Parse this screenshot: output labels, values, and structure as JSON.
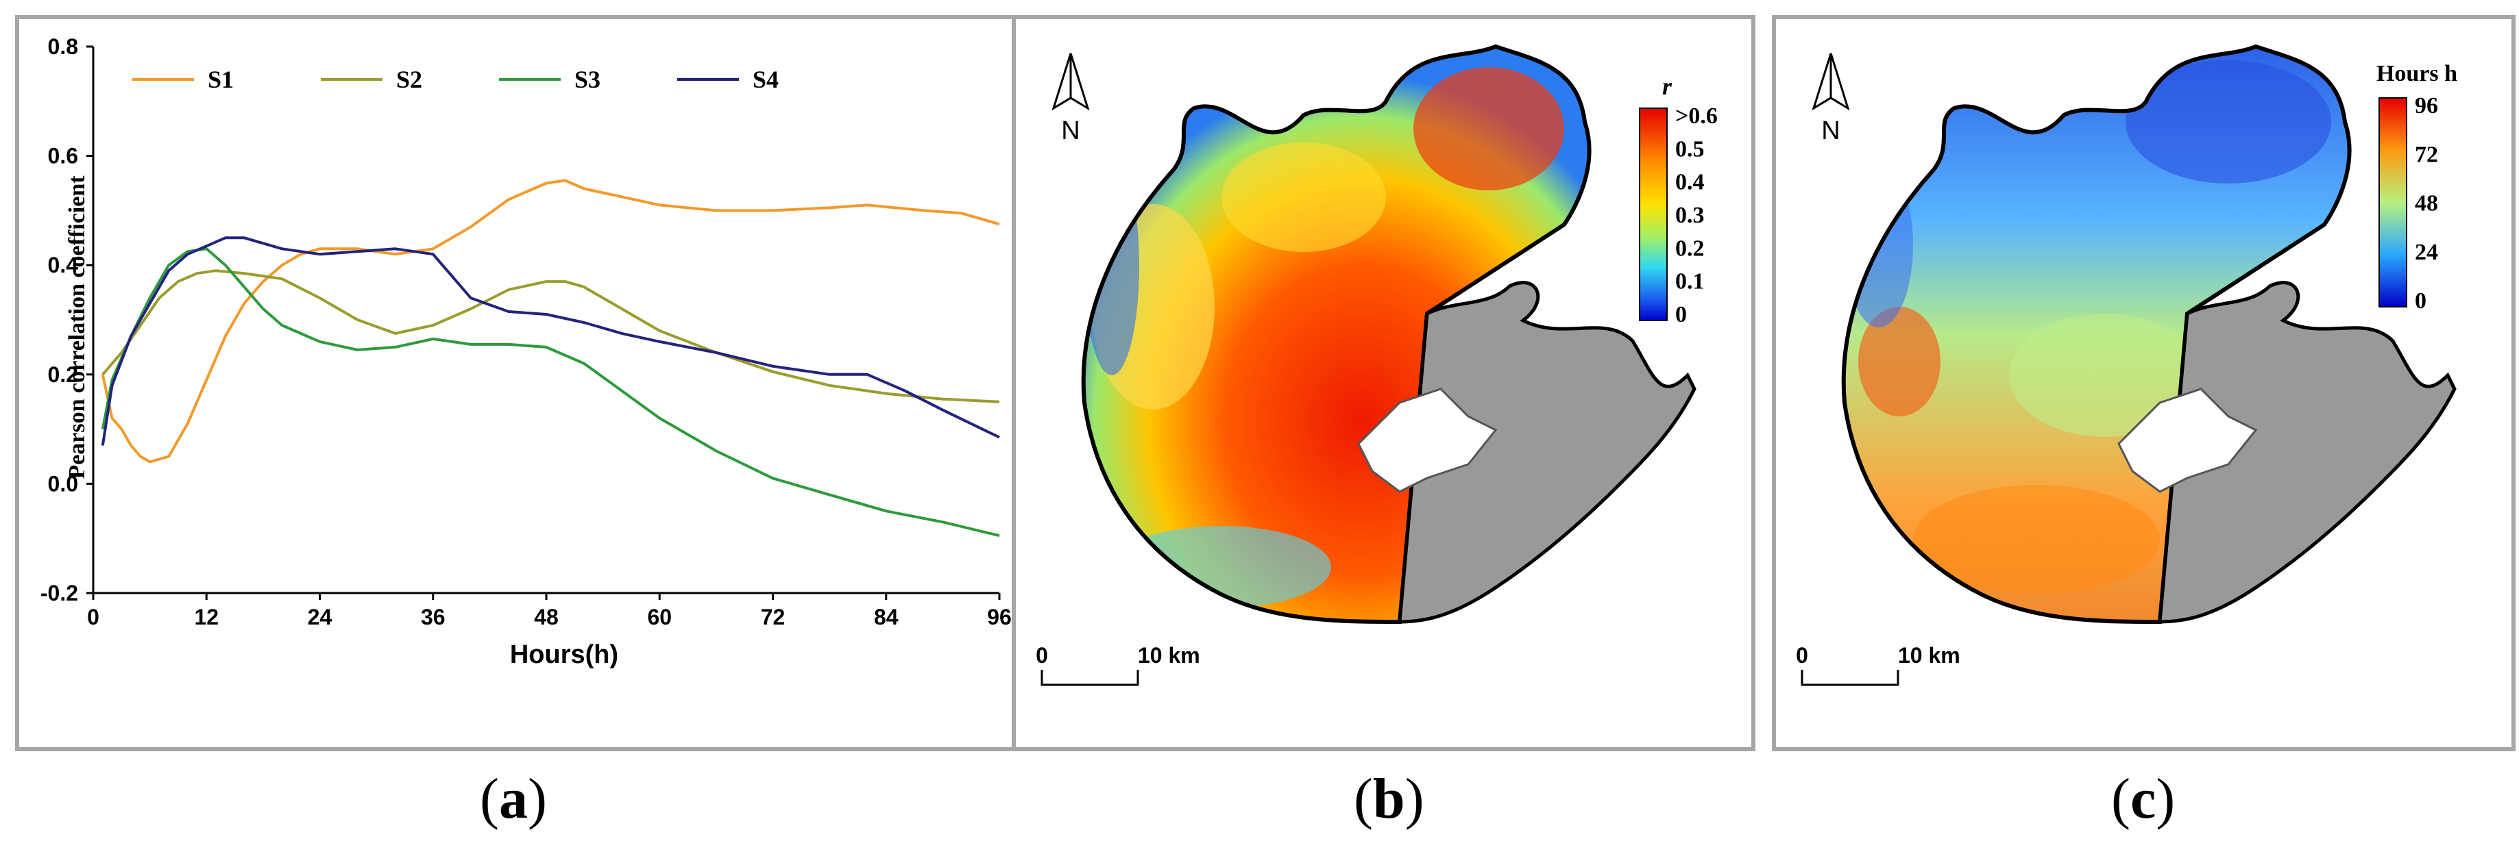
{
  "chart_data": [
    {
      "type": "line",
      "panel": "a",
      "title": "",
      "xlabel": "Hours(h)",
      "ylabel": "Pearson correlation coefficient",
      "xlim": [
        0,
        96
      ],
      "ylim": [
        -0.2,
        0.8
      ],
      "xticks": [
        "0",
        "12",
        "24",
        "36",
        "48",
        "60",
        "72",
        "84",
        "96"
      ],
      "yticks": [
        "-0.2",
        "0.0",
        "0.2",
        "0.4",
        "0.6",
        "0.8"
      ],
      "legend": "top",
      "series": [
        {
          "name": "S1",
          "color": "#f39a2b",
          "x": [
            1,
            2,
            3,
            4,
            5,
            6,
            8,
            10,
            12,
            14,
            16,
            18,
            20,
            22,
            24,
            28,
            32,
            36,
            40,
            44,
            48,
            50,
            52,
            56,
            60,
            66,
            72,
            78,
            82,
            88,
            92,
            96
          ],
          "y": [
            0.2,
            0.12,
            0.1,
            0.07,
            0.05,
            0.04,
            0.05,
            0.11,
            0.19,
            0.27,
            0.33,
            0.37,
            0.4,
            0.42,
            0.43,
            0.43,
            0.42,
            0.43,
            0.47,
            0.52,
            0.55,
            0.555,
            0.54,
            0.525,
            0.51,
            0.5,
            0.5,
            0.505,
            0.51,
            0.5,
            0.495,
            0.475
          ]
        },
        {
          "name": "S2",
          "color": "#9b9c2c",
          "x": [
            1,
            3,
            5,
            7,
            9,
            11,
            13,
            16,
            20,
            24,
            28,
            32,
            36,
            40,
            44,
            48,
            50,
            52,
            56,
            60,
            66,
            72,
            78,
            84,
            90,
            96
          ],
          "y": [
            0.2,
            0.24,
            0.29,
            0.34,
            0.37,
            0.385,
            0.39,
            0.385,
            0.375,
            0.34,
            0.3,
            0.275,
            0.29,
            0.32,
            0.355,
            0.37,
            0.37,
            0.36,
            0.32,
            0.28,
            0.24,
            0.205,
            0.18,
            0.165,
            0.155,
            0.15
          ]
        },
        {
          "name": "S3",
          "color": "#2e9a3c",
          "x": [
            1,
            2,
            4,
            6,
            8,
            10,
            12,
            14,
            16,
            18,
            20,
            24,
            28,
            32,
            36,
            40,
            44,
            48,
            52,
            56,
            60,
            66,
            72,
            78,
            84,
            90,
            96
          ],
          "y": [
            0.1,
            0.19,
            0.27,
            0.34,
            0.4,
            0.425,
            0.43,
            0.4,
            0.36,
            0.32,
            0.29,
            0.26,
            0.245,
            0.25,
            0.265,
            0.255,
            0.255,
            0.25,
            0.22,
            0.17,
            0.12,
            0.06,
            0.01,
            -0.02,
            -0.05,
            -0.07,
            -0.095
          ]
        },
        {
          "name": "S4",
          "color": "#23237e",
          "x": [
            1,
            2,
            4,
            6,
            8,
            10,
            12,
            14,
            16,
            20,
            24,
            28,
            32,
            36,
            40,
            44,
            48,
            52,
            56,
            60,
            66,
            72,
            78,
            82,
            86,
            90,
            96
          ],
          "y": [
            0.07,
            0.18,
            0.27,
            0.33,
            0.39,
            0.42,
            0.435,
            0.45,
            0.45,
            0.43,
            0.42,
            0.425,
            0.43,
            0.42,
            0.34,
            0.315,
            0.31,
            0.295,
            0.275,
            0.26,
            0.24,
            0.215,
            0.2,
            0.2,
            0.17,
            0.135,
            0.085
          ]
        }
      ]
    },
    {
      "type": "heatmap",
      "panel": "b",
      "colorbar_title": "r",
      "colorbar_labels": [
        ">0.6",
        "0.5",
        "0.4",
        "0.3",
        "0.2",
        "0.1",
        "0"
      ],
      "colors": [
        "#e60000",
        "#ff6a00",
        "#ffd000",
        "#c8f040",
        "#3ce0e8",
        "#2c6cf0",
        "#0000d0"
      ]
    },
    {
      "type": "heatmap",
      "panel": "c",
      "colorbar_title": "Hours h",
      "colorbar_labels": [
        "96",
        "72",
        "48",
        "24",
        "0"
      ],
      "colors": [
        "#e60000",
        "#ff9a10",
        "#b8f080",
        "#2aa8ff",
        "#0000d0"
      ]
    }
  ],
  "maps": {
    "north_label": "N",
    "scale_start": "0",
    "scale_end": "10 km",
    "land_color": "#999999",
    "coast_color": "#000000"
  },
  "captions": {
    "a_open": "(",
    "a_letter": "a",
    "a_close": ")",
    "b_open": "(",
    "b_letter": "b",
    "b_close": ")",
    "c_open": "(",
    "c_letter": "c",
    "c_close": ")"
  }
}
